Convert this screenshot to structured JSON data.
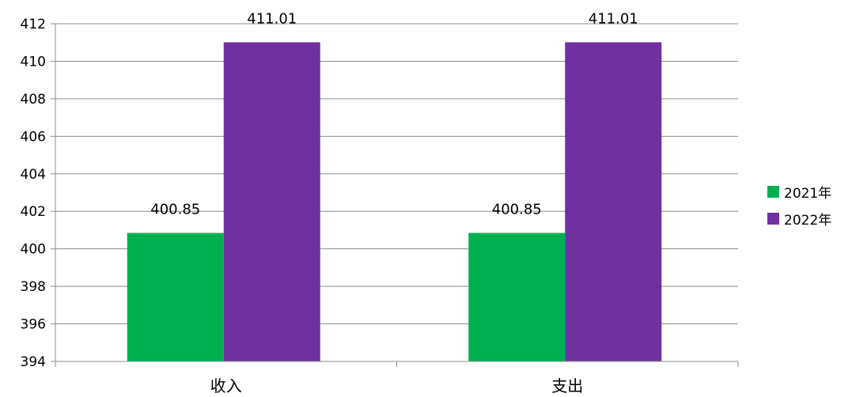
{
  "chart_data": {
    "type": "bar",
    "categories": [
      "收入",
      "支出"
    ],
    "series": [
      {
        "name": "2021年",
        "values": [
          400.85,
          400.85
        ],
        "color": "#00b050"
      },
      {
        "name": "2022年",
        "values": [
          411.01,
          411.01
        ],
        "color": "#7030a0"
      }
    ],
    "data_labels": [
      [
        "400.85",
        "400.85"
      ],
      [
        "411.01",
        "411.01"
      ]
    ],
    "ylim": [
      394,
      412
    ],
    "yticks": [
      "394",
      "396",
      "398",
      "400",
      "402",
      "404",
      "406",
      "408",
      "410",
      "412"
    ],
    "grid": true,
    "legend_position": "right"
  }
}
